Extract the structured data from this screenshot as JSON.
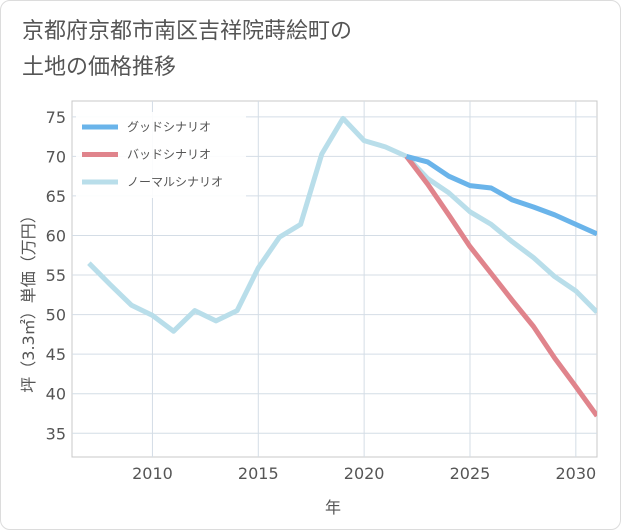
{
  "page": {
    "title_line1": "京都府京都市南区吉祥院蒔絵町の",
    "title_line2": "土地の価格推移"
  },
  "chart_data": {
    "type": "line",
    "title": "京都府京都市南区吉祥院蒔絵町の土地の価格推移",
    "xlabel": "年",
    "ylabel": "坪（3.3㎡）単価（万円）",
    "xlim": [
      2006.2,
      2031
    ],
    "ylim": [
      32,
      77
    ],
    "xticks": [
      2010,
      2015,
      2020,
      2025,
      2030
    ],
    "yticks": [
      35,
      40,
      45,
      50,
      55,
      60,
      65,
      70,
      75
    ],
    "grid": true,
    "legend_position": "top-left",
    "series": [
      {
        "name": "グッドシナリオ",
        "color": "#6ab4ea",
        "x": [
          2022,
          2023,
          2024,
          2025,
          2026,
          2027,
          2028,
          2029,
          2030,
          2031
        ],
        "y": [
          70.0,
          69.3,
          67.5,
          66.3,
          66.0,
          64.5,
          63.6,
          62.6,
          61.4,
          60.2
        ]
      },
      {
        "name": "バッドシナリオ",
        "color": "#e0848c",
        "x": [
          2022,
          2023,
          2024,
          2025,
          2026,
          2027,
          2028,
          2029,
          2030,
          2031
        ],
        "y": [
          70.0,
          66.5,
          62.6,
          58.6,
          55.2,
          51.8,
          48.5,
          44.5,
          40.9,
          37.2
        ]
      },
      {
        "name": "ノーマルシナリオ",
        "color": "#b9deea",
        "x": [
          2007,
          2008,
          2009,
          2010,
          2011,
          2012,
          2013,
          2014,
          2015,
          2016,
          2017,
          2018,
          2019,
          2020,
          2021,
          2022,
          2023,
          2024,
          2025,
          2026,
          2027,
          2028,
          2029,
          2030,
          2031
        ],
        "y": [
          56.5,
          53.8,
          51.2,
          49.9,
          47.9,
          50.5,
          49.2,
          50.5,
          55.9,
          59.8,
          61.4,
          70.3,
          74.8,
          72.0,
          71.2,
          70.0,
          67.2,
          65.4,
          63.0,
          61.4,
          59.2,
          57.2,
          54.8,
          53.0,
          50.3
        ]
      }
    ]
  }
}
